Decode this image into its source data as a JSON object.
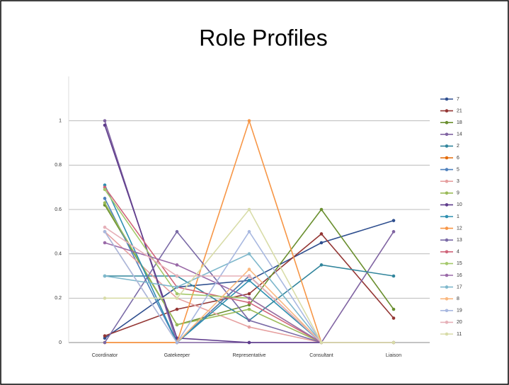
{
  "chart_data": {
    "type": "line",
    "title": "Role Profiles",
    "categories": [
      "Coordinator",
      "Gatekeeper",
      "Representative",
      "Consultant",
      "Liaison"
    ],
    "ylim": [
      0,
      1.2
    ],
    "yticks": [
      0,
      0.2,
      0.4,
      0.6,
      0.8,
      1
    ],
    "grid": true,
    "legend": "right",
    "series": [
      {
        "name": "7",
        "color": "#2f4f8f",
        "values": [
          0.02,
          0.25,
          0.28,
          0.45,
          0.55
        ]
      },
      {
        "name": "21",
        "color": "#943634",
        "values": [
          0.03,
          0.15,
          0.22,
          0.49,
          0.11
        ]
      },
      {
        "name": "18",
        "color": "#6a8f2f",
        "values": [
          0.62,
          0.08,
          0.17,
          0.6,
          0.15
        ]
      },
      {
        "name": "14",
        "color": "#8064a2",
        "values": [
          1,
          0,
          0,
          0,
          0.5
        ]
      },
      {
        "name": "2",
        "color": "#31859c",
        "values": [
          0.3,
          0.3,
          0.1,
          0.35,
          0.3
        ]
      },
      {
        "name": "6",
        "color": "#e46c0a",
        "values": [
          0,
          0,
          0.3,
          0,
          0
        ]
      },
      {
        "name": "5",
        "color": "#4f81bd",
        "values": [
          0.65,
          0,
          0.3,
          0,
          0
        ]
      },
      {
        "name": "3",
        "color": "#e6a0a0",
        "values": [
          0.5,
          0.2,
          0.07,
          0,
          0
        ]
      },
      {
        "name": "9",
        "color": "#9bbb59",
        "values": [
          0.63,
          0.08,
          0.15,
          0,
          0
        ]
      },
      {
        "name": "10",
        "color": "#5f3c8c",
        "values": [
          0.98,
          0.02,
          0,
          0,
          0
        ]
      },
      {
        "name": "1",
        "color": "#2e8fb0",
        "values": [
          0.71,
          0,
          0.28,
          0,
          0
        ]
      },
      {
        "name": "12",
        "color": "#f79646",
        "values": [
          0,
          0,
          1,
          0,
          0
        ]
      },
      {
        "name": "13",
        "color": "#7a6aa6",
        "values": [
          0,
          0.5,
          0.1,
          0,
          0
        ]
      },
      {
        "name": "4",
        "color": "#d0657a",
        "values": [
          0.7,
          0.25,
          0.18,
          0,
          0
        ]
      },
      {
        "name": "15",
        "color": "#a4c86a",
        "values": [
          0.69,
          0.22,
          0.2,
          0,
          0
        ]
      },
      {
        "name": "16",
        "color": "#9a6aa8",
        "values": [
          0.45,
          0.35,
          0.2,
          0,
          0
        ]
      },
      {
        "name": "17",
        "color": "#7fb8cc",
        "values": [
          0.3,
          0.25,
          0.4,
          0,
          0
        ]
      },
      {
        "name": "8",
        "color": "#f9b880",
        "values": [
          0.5,
          0,
          0.33,
          0,
          0
        ]
      },
      {
        "name": "19",
        "color": "#a8b8e0",
        "values": [
          0.5,
          0,
          0.5,
          0,
          0
        ]
      },
      {
        "name": "20",
        "color": "#e6b0b8",
        "values": [
          0.52,
          0.3,
          0.3,
          0,
          0
        ]
      },
      {
        "name": "11",
        "color": "#d8dca8",
        "values": [
          0.2,
          0.2,
          0.6,
          0,
          0
        ]
      }
    ]
  }
}
